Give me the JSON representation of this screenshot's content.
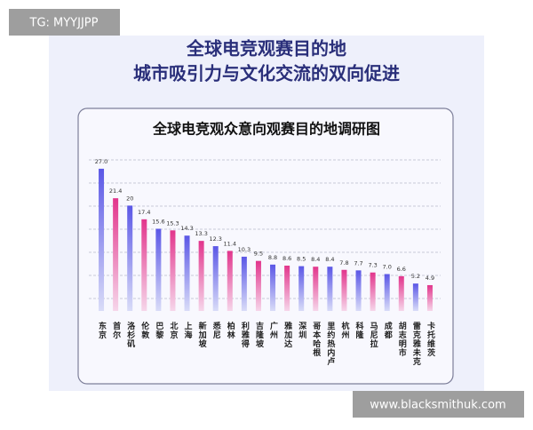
{
  "watermark": "TG: MYYJJPP",
  "source": "www.blacksmithuk.com",
  "header": {
    "line1": "全球电竞观赛目的地",
    "line2": "城市吸引力与文化交流的双向促进"
  },
  "chart_data": {
    "type": "bar",
    "title": "全球电竞观众意向观赛目的地调研图",
    "categories": [
      "东京",
      "首尔",
      "洛杉矶",
      "伦敦",
      "巴黎",
      "北京",
      "上海",
      "新加坡",
      "悉尼",
      "柏林",
      "利雅得",
      "吉隆坡",
      "广州",
      "雅加达",
      "深圳",
      "哥本哈根",
      "里约热内卢",
      "杭州",
      "科隆",
      "马尼拉",
      "成都",
      "胡志明市",
      "雷克雅未克",
      "卡托维茨"
    ],
    "values": [
      27.0,
      21.4,
      20,
      17.4,
      15.6,
      15.3,
      14.3,
      13.3,
      12.3,
      11.4,
      10.3,
      9.5,
      8.8,
      8.6,
      8.5,
      8.4,
      8.4,
      7.8,
      7.7,
      7.3,
      7.0,
      6.6,
      5.2,
      4.9
    ],
    "value_labels": [
      "27.0",
      "21.4",
      "20",
      "17.4",
      "15.6",
      "15.3",
      "14.3",
      "13.3",
      "12.3",
      "11.4",
      "10.3",
      "9.5",
      "8.8",
      "8.6",
      "8.5",
      "8.4",
      "8.4",
      "7.8",
      "7.7",
      "7.3",
      "7.0",
      "6.6",
      "5.2",
      "4.9"
    ],
    "colors": [
      "#5b57e6",
      "#e2358c"
    ],
    "ylim": [
      0,
      28
    ],
    "grid": true
  }
}
